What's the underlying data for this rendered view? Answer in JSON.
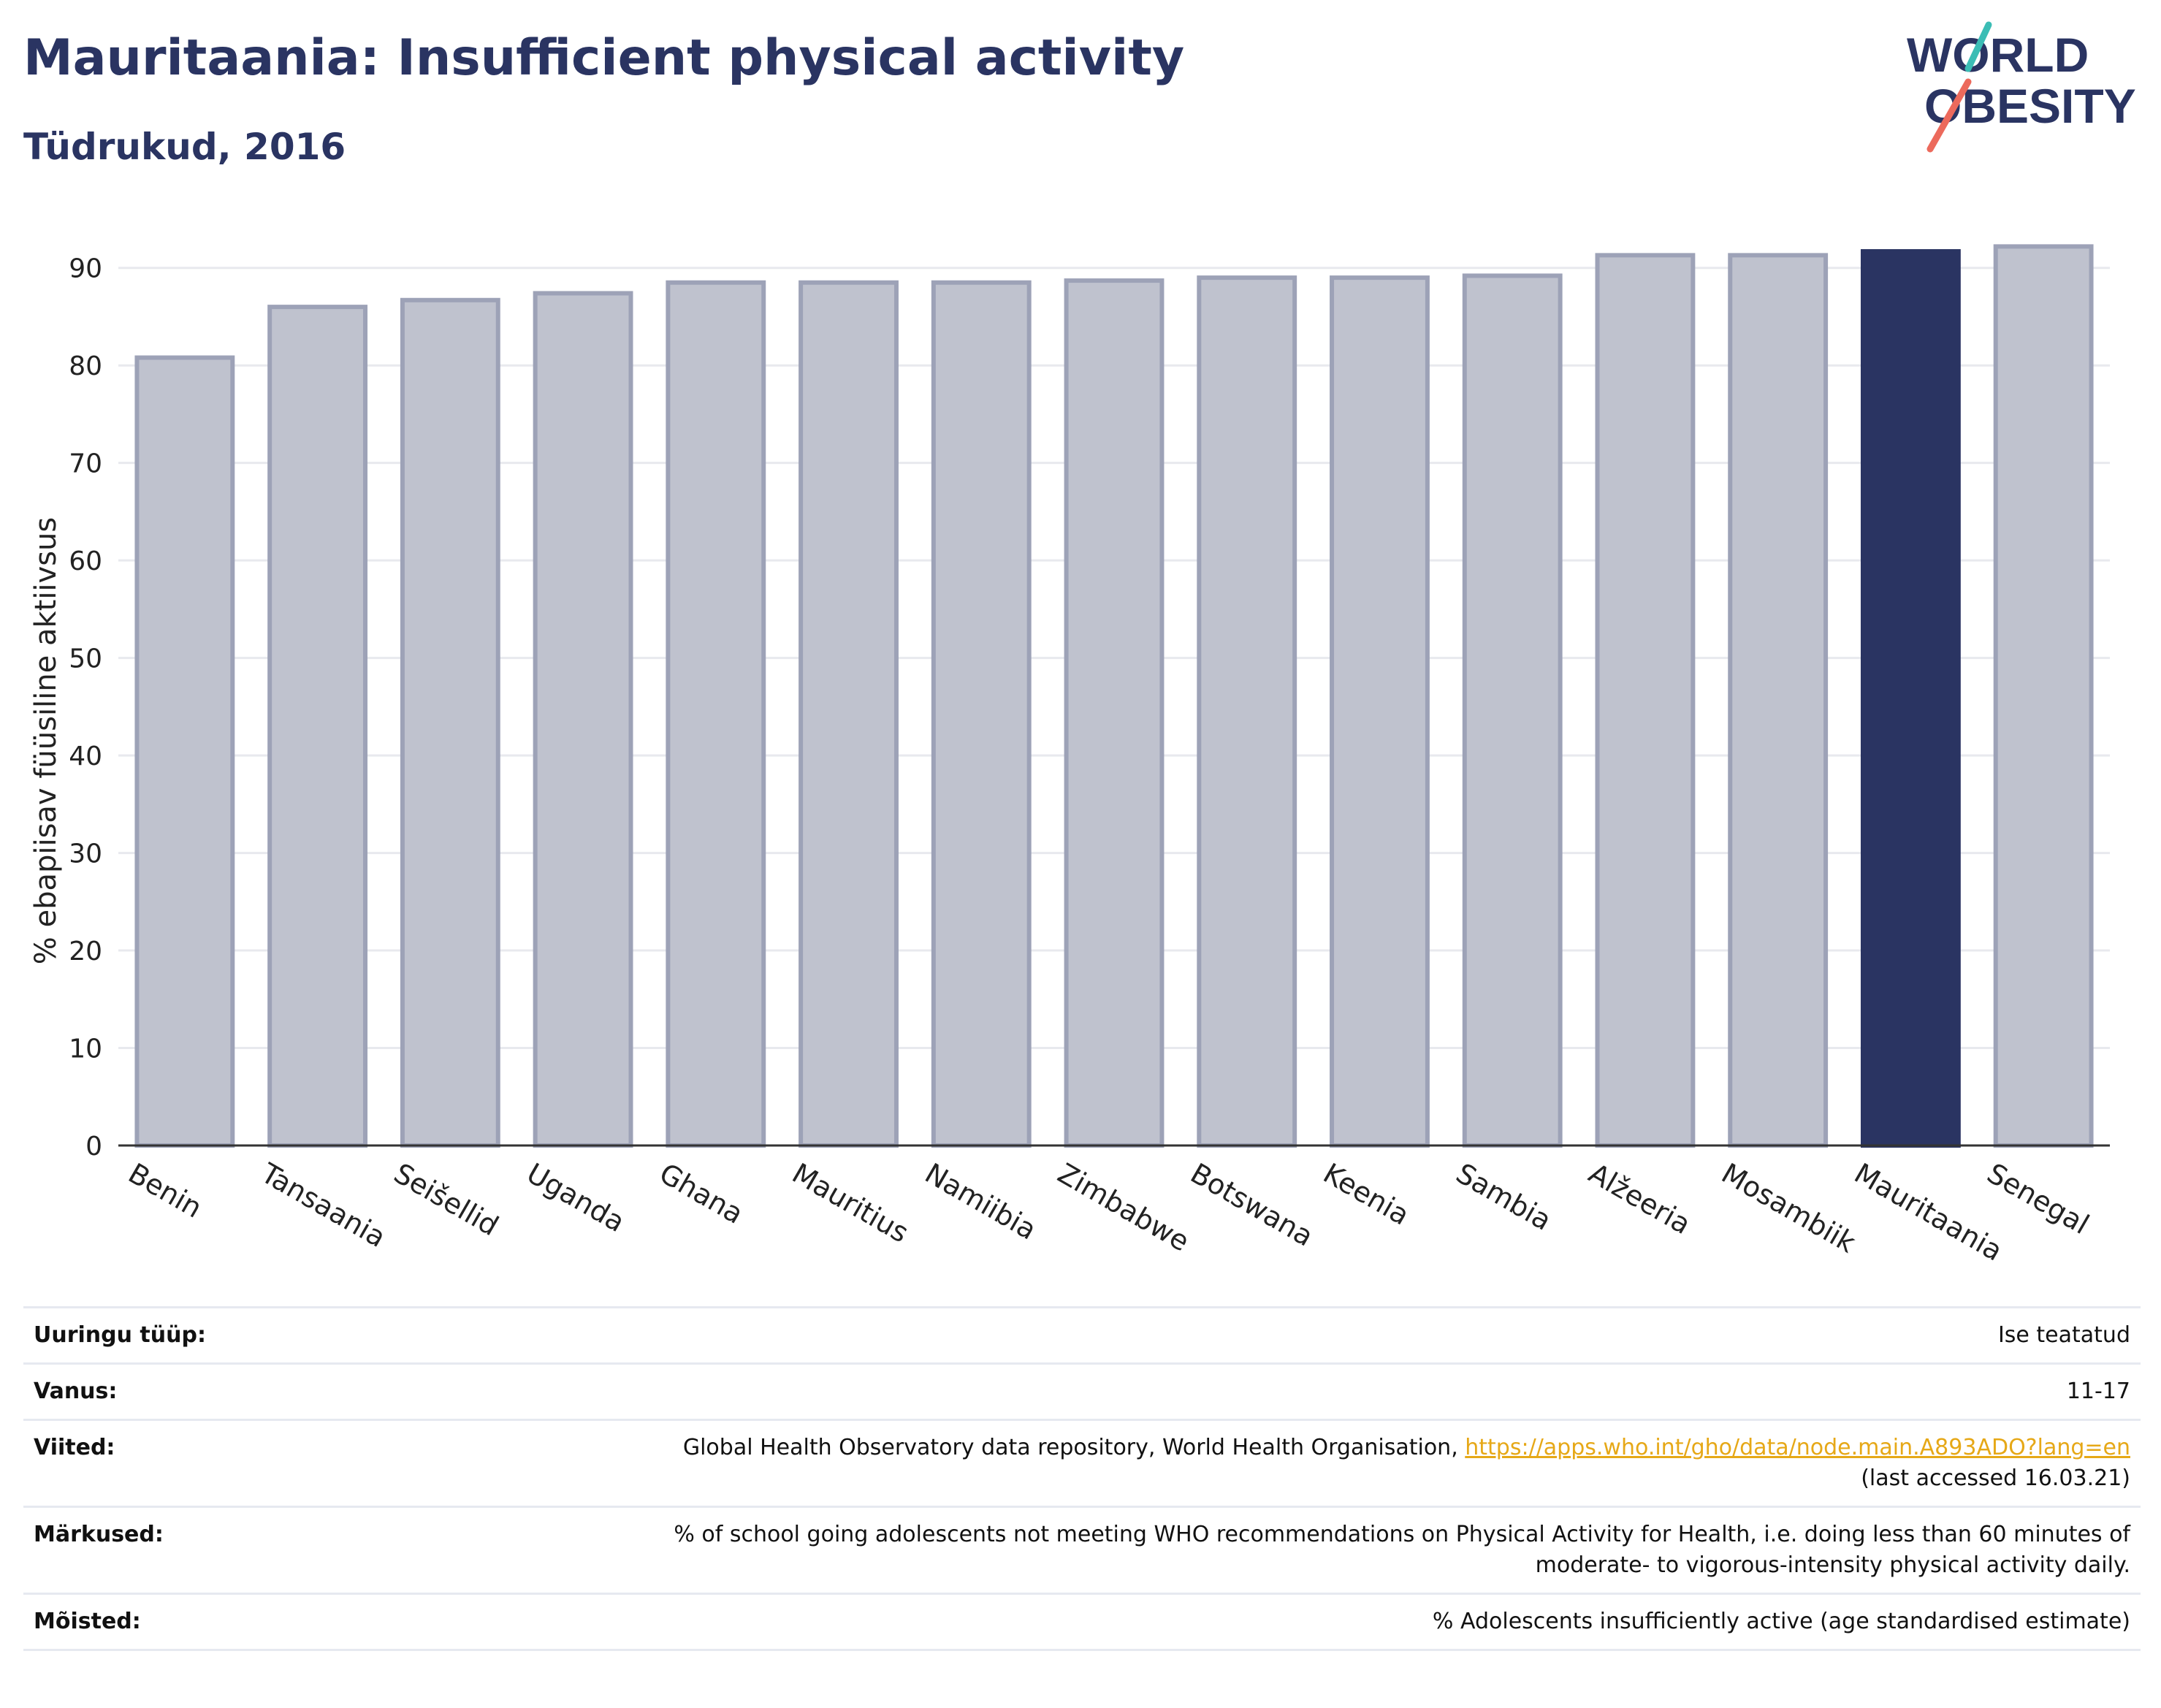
{
  "header": {
    "title": "Mauritaania: Insufficient physical activity",
    "subtitle": "Tüdrukud, 2016"
  },
  "logo": {
    "line1": "WORLD",
    "line2": "OBESITY",
    "icon": "world-obesity-logo"
  },
  "colors": {
    "bar": "#bfc2ce",
    "bar_border": "#9da2b7",
    "highlight": "#2a3462",
    "title": "#2a3462",
    "link": "#e6a817",
    "grid": "#e8e9ee"
  },
  "chart_data": {
    "type": "bar",
    "title": "Mauritaania: Insufficient physical activity",
    "subtitle": "Tüdrukud, 2016",
    "ylabel": "% ebapiisav füüsiline aktiivsus",
    "xlabel": "",
    "categories": [
      "Benin",
      "Tansaania",
      "Seišellid",
      "Uganda",
      "Ghana",
      "Mauritius",
      "Namiibia",
      "Zimbabwe",
      "Botswana",
      "Keenia",
      "Sambia",
      "Alžeeria",
      "Mosambiik",
      "Mauritaania",
      "Senegal"
    ],
    "values": [
      80.8,
      86.0,
      86.7,
      87.4,
      88.5,
      88.5,
      88.5,
      88.7,
      89.0,
      89.0,
      89.2,
      91.3,
      91.3,
      91.7,
      92.2
    ],
    "highlight": "Mauritaania",
    "ylim": [
      0,
      95
    ],
    "yticks": [
      0,
      10,
      20,
      30,
      40,
      50,
      60,
      70,
      80,
      90
    ],
    "grid": true
  },
  "info": {
    "rows": [
      {
        "label": "Uuringu tüüp:",
        "text": "Ise teatatud"
      },
      {
        "label": "Vanus:",
        "text": "11-17"
      },
      {
        "label": "Viited:",
        "text": "Global Health Observatory data repository, World Health Organisation, ",
        "link": "https://apps.who.int/gho/data/node.main.A893ADO?lang=en",
        "text2": "(last accessed 16.03.21)"
      },
      {
        "label": "Märkused:",
        "text": "% of school going adolescents not meeting WHO recommendations on Physical Activity for Health, i.e. doing less than 60 minutes of",
        "text2": "moderate- to vigorous-intensity physical activity daily."
      },
      {
        "label": "Mõisted:",
        "text": "% Adolescents insufficiently active (age standardised estimate)"
      }
    ]
  }
}
